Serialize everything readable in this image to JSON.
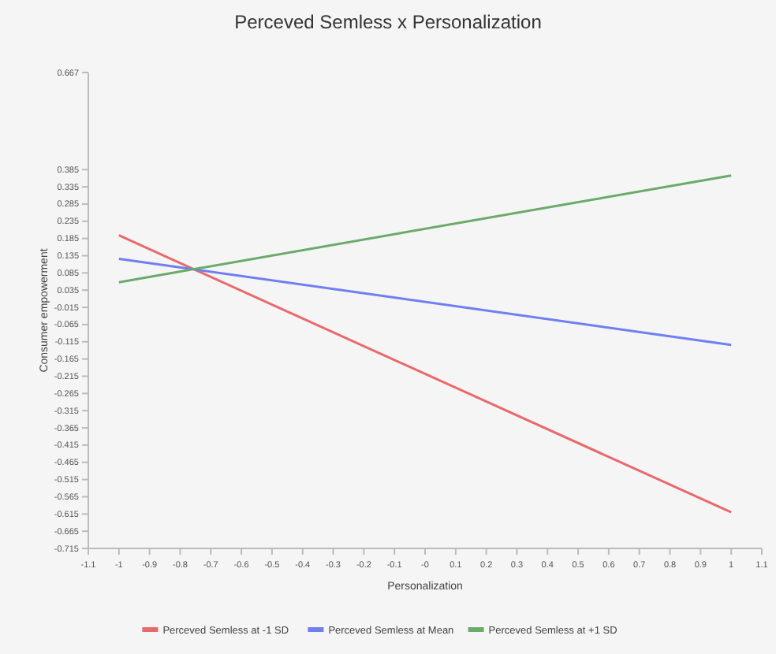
{
  "chart_data": {
    "type": "line",
    "title": "Perceved Semless x Personalization",
    "xlabel": "Personalization",
    "ylabel": "Consumer empowerment",
    "x": [
      -1,
      1
    ],
    "series": [
      {
        "name": "Perceved Semless at -1 SD",
        "color": "#e8696b",
        "values": [
          0.194,
          -0.61
        ]
      },
      {
        "name": "Perceved Semless at Mean",
        "color": "#6f7ff0",
        "values": [
          0.126,
          -0.124
        ]
      },
      {
        "name": "Perceved Semless at +1 SD",
        "color": "#6aaa6a",
        "values": [
          0.058,
          0.368
        ]
      }
    ],
    "xlim": [
      -1.1,
      1.1
    ],
    "xticks": [
      -1.1,
      -1,
      -0.9,
      -0.8,
      -0.7,
      -0.6,
      -0.5,
      -0.4,
      -0.3,
      -0.2,
      -0.1,
      {
        "value": 0,
        "label": "-0"
      },
      0.1,
      0.2,
      0.3,
      0.4,
      0.5,
      0.6,
      0.7,
      0.8,
      0.9,
      1,
      1.1
    ],
    "ylim": [
      -0.715,
      0.667
    ],
    "yticks": [
      0.667,
      0.385,
      0.335,
      0.285,
      0.235,
      0.185,
      0.135,
      0.085,
      0.035,
      -0.015,
      -0.065,
      -0.115,
      -0.165,
      -0.215,
      -0.265,
      -0.315,
      -0.365,
      -0.415,
      -0.465,
      -0.515,
      -0.565,
      -0.615,
      -0.665,
      -0.715
    ],
    "legend": "bottom",
    "grid": false,
    "marker": "none",
    "line_style": "solid"
  }
}
